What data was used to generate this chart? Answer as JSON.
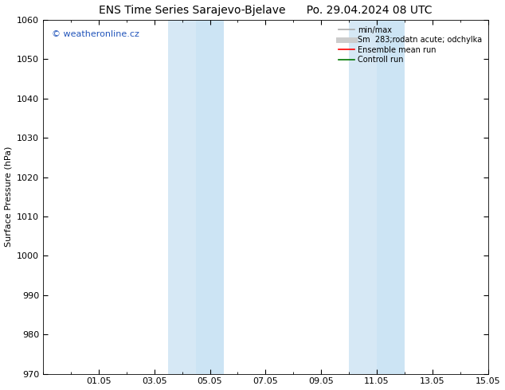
{
  "title": "ENS Time Series Sarajevo-Bjelave      Po. 29.04.2024 08 UTC",
  "ylabel": "Surface Pressure (hPa)",
  "ylim": [
    970,
    1060
  ],
  "yticks": [
    970,
    980,
    990,
    1000,
    1010,
    1020,
    1030,
    1040,
    1050,
    1060
  ],
  "xlim": [
    0,
    16
  ],
  "xtick_positions": [
    2,
    4,
    6,
    8,
    10,
    12,
    14,
    16
  ],
  "xtick_labels": [
    "01.05",
    "03.05",
    "05.05",
    "07.05",
    "09.05",
    "11.05",
    "13.05",
    "15.05"
  ],
  "shaded_bands": [
    {
      "start_day": 4.5,
      "end_day": 5.5
    },
    {
      "start_day": 5.5,
      "end_day": 6.5
    },
    {
      "start_day": 11.0,
      "end_day": 12.0
    },
    {
      "start_day": 12.0,
      "end_day": 13.0
    }
  ],
  "shaded_colors": [
    "#d6e8f5",
    "#cce4f4",
    "#d6e8f5",
    "#cce4f4"
  ],
  "background_color": "#ffffff",
  "watermark_text": "© weatheronline.cz",
  "watermark_color": "#2255bb",
  "legend_entries": [
    {
      "label": "min/max",
      "color": "#aaaaaa",
      "lw": 1.2
    },
    {
      "label": "Sm  283;rodatn acute; odchylka",
      "color": "#cccccc",
      "lw": 5
    },
    {
      "label": "Ensemble mean run",
      "color": "#ff0000",
      "lw": 1.2
    },
    {
      "label": "Controll run",
      "color": "#007700",
      "lw": 1.2
    }
  ],
  "title_fontsize": 10,
  "label_fontsize": 8,
  "tick_fontsize": 8,
  "legend_fontsize": 7,
  "watermark_fontsize": 8
}
